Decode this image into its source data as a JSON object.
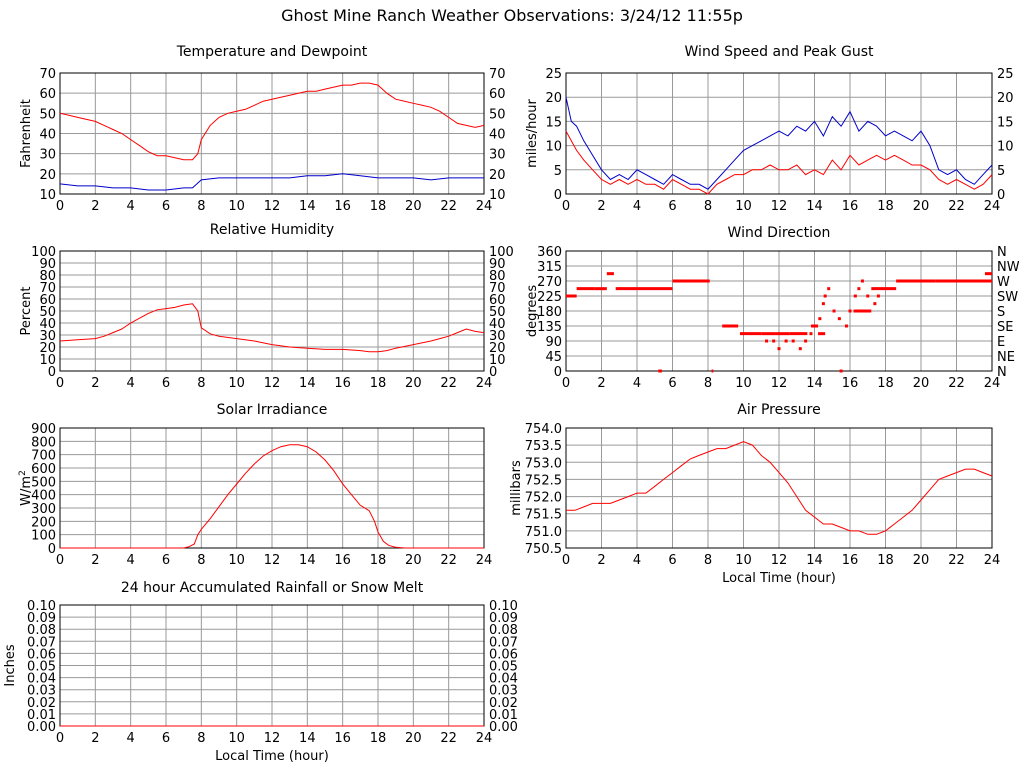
{
  "page": {
    "title": "Ghost Mine Ranch Weather Observations: 3/24/12 11:55p"
  },
  "chart_data": [
    {
      "id": "temperature",
      "type": "line",
      "title": "Temperature and Dewpoint",
      "xlabel": "",
      "ylabel": "Fahrenheit",
      "xlim": [
        0,
        24
      ],
      "ylim": [
        10,
        70
      ],
      "xticks": [
        0,
        2,
        4,
        6,
        8,
        10,
        12,
        14,
        16,
        18,
        20,
        22,
        24
      ],
      "yticks": [
        10,
        20,
        30,
        40,
        50,
        60,
        70
      ],
      "right_axis": true,
      "grid": true,
      "series": [
        {
          "color": "#ff0000",
          "x": [
            0,
            0.5,
            1,
            1.5,
            2,
            2.5,
            3,
            3.5,
            4,
            4.5,
            5,
            5.5,
            6,
            6.5,
            7,
            7.5,
            7.8,
            8,
            8.5,
            9,
            9.5,
            10,
            10.5,
            11,
            11.5,
            12,
            12.5,
            13,
            13.5,
            14,
            14.5,
            15,
            15.5,
            16,
            16.5,
            17,
            17.5,
            18,
            18.5,
            19,
            19.5,
            20,
            20.5,
            21,
            21.5,
            22,
            22.5,
            23,
            23.5,
            24
          ],
          "y": [
            50,
            49,
            48,
            47,
            46,
            44,
            42,
            40,
            37,
            34,
            31,
            29,
            29,
            28,
            27,
            27,
            30,
            37,
            44,
            48,
            50,
            51,
            52,
            54,
            56,
            57,
            58,
            59,
            60,
            61,
            61,
            62,
            63,
            64,
            64,
            65,
            65,
            64,
            60,
            57,
            56,
            55,
            54,
            53,
            51,
            48,
            45,
            44,
            43,
            44
          ]
        },
        {
          "color": "#0000cc",
          "x": [
            0,
            1,
            2,
            3,
            4,
            5,
            6,
            7,
            7.5,
            8,
            9,
            10,
            11,
            12,
            13,
            14,
            15,
            16,
            17,
            18,
            19,
            20,
            21,
            22,
            23,
            24
          ],
          "y": [
            15,
            14,
            14,
            13,
            13,
            12,
            12,
            13,
            13,
            17,
            18,
            18,
            18,
            18,
            18,
            19,
            19,
            20,
            19,
            18,
            18,
            18,
            17,
            18,
            18,
            18
          ]
        }
      ]
    },
    {
      "id": "wind-speed",
      "type": "line",
      "title": "Wind Speed and Peak Gust",
      "xlabel": "",
      "ylabel": "miles/hour",
      "xlim": [
        0,
        24
      ],
      "ylim": [
        0,
        25
      ],
      "xticks": [
        0,
        2,
        4,
        6,
        8,
        10,
        12,
        14,
        16,
        18,
        20,
        22,
        24
      ],
      "yticks": [
        0,
        5,
        10,
        15,
        20,
        25
      ],
      "right_axis": true,
      "grid": true,
      "series": [
        {
          "color": "#0000cc",
          "x": [
            0,
            0.3,
            0.6,
            1,
            1.5,
            2,
            2.5,
            3,
            3.5,
            4,
            4.5,
            5,
            5.5,
            6,
            6.5,
            7,
            7.5,
            8,
            8.5,
            9,
            9.5,
            10,
            10.5,
            11,
            11.5,
            12,
            12.5,
            13,
            13.5,
            14,
            14.5,
            15,
            15.5,
            16,
            16.5,
            17,
            17.5,
            18,
            18.5,
            19,
            19.5,
            20,
            20.5,
            21,
            21.5,
            22,
            22.5,
            23,
            23.5,
            24
          ],
          "y": [
            20,
            15,
            14,
            11,
            8,
            5,
            3,
            4,
            3,
            5,
            4,
            3,
            2,
            4,
            3,
            2,
            2,
            1,
            3,
            5,
            7,
            9,
            10,
            11,
            12,
            13,
            12,
            14,
            13,
            15,
            12,
            16,
            14,
            17,
            13,
            15,
            14,
            12,
            13,
            12,
            11,
            13,
            10,
            5,
            4,
            5,
            3,
            2,
            4,
            6
          ]
        },
        {
          "color": "#ff0000",
          "x": [
            0,
            0.3,
            0.6,
            1,
            1.5,
            2,
            2.5,
            3,
            3.5,
            4,
            4.5,
            5,
            5.5,
            6,
            6.5,
            7,
            7.5,
            8,
            8.5,
            9,
            9.5,
            10,
            10.5,
            11,
            11.5,
            12,
            12.5,
            13,
            13.5,
            14,
            14.5,
            15,
            15.5,
            16,
            16.5,
            17,
            17.5,
            18,
            18.5,
            19,
            19.5,
            20,
            20.5,
            21,
            21.5,
            22,
            22.5,
            23,
            23.5,
            24
          ],
          "y": [
            13,
            11,
            9,
            7,
            5,
            3,
            2,
            3,
            2,
            3,
            2,
            2,
            1,
            3,
            2,
            1,
            1,
            0,
            2,
            3,
            4,
            4,
            5,
            5,
            6,
            5,
            5,
            6,
            4,
            5,
            4,
            7,
            5,
            8,
            6,
            7,
            8,
            7,
            8,
            7,
            6,
            6,
            5,
            3,
            2,
            3,
            2,
            1,
            2,
            4
          ]
        }
      ]
    },
    {
      "id": "humidity",
      "type": "line",
      "title": "Relative Humidity",
      "xlabel": "",
      "ylabel": "Percent",
      "xlim": [
        0,
        24
      ],
      "ylim": [
        0,
        100
      ],
      "xticks": [
        0,
        2,
        4,
        6,
        8,
        10,
        12,
        14,
        16,
        18,
        20,
        22,
        24
      ],
      "yticks": [
        0,
        10,
        20,
        30,
        40,
        50,
        60,
        70,
        80,
        90,
        100
      ],
      "right_axis": true,
      "grid": true,
      "series": [
        {
          "color": "#ff0000",
          "x": [
            0,
            1,
            2,
            2.5,
            3,
            3.5,
            4,
            4.5,
            5,
            5.5,
            6,
            6.5,
            7,
            7.5,
            7.8,
            8,
            8.5,
            9,
            10,
            11,
            12,
            13,
            14,
            15,
            16,
            17,
            17.5,
            18,
            18.5,
            19,
            20,
            21,
            21.5,
            22,
            22.5,
            23,
            23.5,
            24
          ],
          "y": [
            25,
            26,
            27,
            29,
            32,
            35,
            40,
            44,
            48,
            51,
            52,
            53,
            55,
            56,
            50,
            36,
            31,
            29,
            27,
            25,
            22,
            20,
            19,
            18,
            18,
            17,
            16,
            16,
            17,
            19,
            22,
            25,
            27,
            29,
            32,
            35,
            33,
            32
          ]
        }
      ]
    },
    {
      "id": "wind-direction",
      "type": "scatter",
      "title": "Wind Direction",
      "xlabel": "",
      "ylabel": "degrees",
      "xlim": [
        0,
        24
      ],
      "ylim": [
        0,
        360
      ],
      "xticks": [
        0,
        2,
        4,
        6,
        8,
        10,
        12,
        14,
        16,
        18,
        20,
        22,
        24
      ],
      "yticks": [
        0,
        45,
        90,
        135,
        180,
        225,
        270,
        315,
        360
      ],
      "right_labels": [
        "N",
        "NE",
        "E",
        "SE",
        "S",
        "SW",
        "W",
        "NW",
        "N"
      ],
      "grid": true,
      "series": [
        {
          "color": "#ff0000",
          "segments": [
            [
              0,
              0.6,
              225
            ],
            [
              0.6,
              1.6,
              247
            ],
            [
              1.6,
              2.3,
              247
            ],
            [
              2.3,
              2.7,
              292
            ],
            [
              2.8,
              6,
              247
            ],
            [
              6,
              8.1,
              270
            ],
            [
              8.2,
              8.3,
              0
            ],
            [
              5.2,
              5.4,
              0
            ],
            [
              8.8,
              9.7,
              135
            ],
            [
              9.8,
              11,
              112
            ],
            [
              11,
              11.8,
              112
            ],
            [
              11.8,
              12.6,
              112
            ],
            [
              12.6,
              13.6,
              112
            ],
            [
              13.8,
              14.2,
              135
            ],
            [
              14.2,
              14.6,
              112
            ],
            [
              16.2,
              17.2,
              180
            ],
            [
              17.2,
              18.6,
              247
            ],
            [
              18.6,
              20.8,
              270
            ],
            [
              20.8,
              24,
              270
            ],
            [
              23.6,
              24,
              292
            ]
          ],
          "points": [
            [
              11.3,
              90
            ],
            [
              11.7,
              90
            ],
            [
              12,
              67
            ],
            [
              12.4,
              90
            ],
            [
              12.8,
              90
            ],
            [
              13.2,
              67
            ],
            [
              13.5,
              90
            ],
            [
              13.8,
              112
            ],
            [
              14.3,
              157
            ],
            [
              14.5,
              202
            ],
            [
              14.6,
              225
            ],
            [
              14.8,
              247
            ],
            [
              15.1,
              180
            ],
            [
              15.4,
              157
            ],
            [
              15.5,
              0
            ],
            [
              15.8,
              135
            ],
            [
              16,
              180
            ],
            [
              16.3,
              225
            ],
            [
              16.5,
              247
            ],
            [
              16.7,
              270
            ],
            [
              17.0,
              225
            ],
            [
              17.4,
              202
            ],
            [
              17.6,
              225
            ]
          ]
        }
      ]
    },
    {
      "id": "solar",
      "type": "line",
      "title": "Solar Irradiance",
      "xlabel": "",
      "ylabel": "W/m²",
      "xlim": [
        0,
        24
      ],
      "ylim": [
        0,
        900
      ],
      "xticks": [
        0,
        2,
        4,
        6,
        8,
        10,
        12,
        14,
        16,
        18,
        20,
        22,
        24
      ],
      "yticks": [
        0,
        100,
        200,
        300,
        400,
        500,
        600,
        700,
        800,
        900
      ],
      "right_axis": false,
      "grid": true,
      "series": [
        {
          "color": "#ff0000",
          "x": [
            0,
            6,
            7,
            7.3,
            7.6,
            7.8,
            8,
            8.5,
            9,
            9.5,
            10,
            10.5,
            11,
            11.5,
            12,
            12.5,
            13,
            13.5,
            14,
            14.5,
            15,
            15.5,
            16,
            16.5,
            17,
            17.5,
            17.8,
            18,
            18.3,
            18.6,
            19,
            19.5,
            20,
            24
          ],
          "y": [
            0,
            0,
            0,
            10,
            30,
            100,
            140,
            220,
            310,
            400,
            480,
            560,
            630,
            690,
            730,
            760,
            775,
            775,
            760,
            720,
            660,
            580,
            480,
            400,
            320,
            280,
            200,
            120,
            50,
            20,
            5,
            0,
            0,
            0
          ]
        }
      ]
    },
    {
      "id": "pressure",
      "type": "line",
      "title": "Air Pressure",
      "xlabel": "Local Time (hour)",
      "ylabel": "millibars",
      "xlim": [
        0,
        24
      ],
      "ylim": [
        750.5,
        754.0
      ],
      "xticks": [
        0,
        2,
        4,
        6,
        8,
        10,
        12,
        14,
        16,
        18,
        20,
        22,
        24
      ],
      "ytick_labels": [
        "750.5",
        "751.0",
        "751.5",
        "752.0",
        "752.5",
        "753.0",
        "753.5",
        "754.0"
      ],
      "yticks": [
        750.5,
        751.0,
        751.5,
        752.0,
        752.5,
        753.0,
        753.5,
        754.0
      ],
      "right_axis": false,
      "grid": true,
      "series": [
        {
          "color": "#ff0000",
          "x": [
            0,
            0.5,
            1,
            1.5,
            2,
            2.5,
            3,
            3.5,
            4,
            4.5,
            5,
            5.5,
            6,
            6.5,
            7,
            7.5,
            8,
            8.5,
            9,
            9.5,
            10,
            10.5,
            11,
            11.5,
            12,
            12.5,
            13,
            13.5,
            14,
            14.5,
            15,
            15.5,
            16,
            16.5,
            17,
            17.5,
            18,
            18.5,
            19,
            19.5,
            20,
            20.5,
            21,
            21.5,
            22,
            22.5,
            23,
            23.5,
            24
          ],
          "y": [
            751.6,
            751.6,
            751.7,
            751.8,
            751.8,
            751.8,
            751.9,
            752.0,
            752.1,
            752.1,
            752.3,
            752.5,
            752.7,
            752.9,
            753.1,
            753.2,
            753.3,
            753.4,
            753.4,
            753.5,
            753.6,
            753.5,
            753.2,
            753.0,
            752.7,
            752.4,
            752.0,
            751.6,
            751.4,
            751.2,
            751.2,
            751.1,
            751.0,
            751.0,
            750.9,
            750.9,
            751.0,
            751.2,
            751.4,
            751.6,
            751.9,
            752.2,
            752.5,
            752.6,
            752.7,
            752.8,
            752.8,
            752.7,
            752.6
          ]
        }
      ]
    },
    {
      "id": "rain",
      "type": "line",
      "title": "24 hour Accumulated Rainfall or Snow Melt",
      "xlabel": "Local Time (hour)",
      "ylabel": "Inches",
      "xlim": [
        0,
        24
      ],
      "ylim": [
        0,
        0.1
      ],
      "xticks": [
        0,
        2,
        4,
        6,
        8,
        10,
        12,
        14,
        16,
        18,
        20,
        22,
        24
      ],
      "ytick_labels": [
        "0.00",
        "0.01",
        "0.02",
        "0.03",
        "0.04",
        "0.05",
        "0.06",
        "0.07",
        "0.08",
        "0.09",
        "0.10"
      ],
      "yticks": [
        0,
        0.01,
        0.02,
        0.03,
        0.04,
        0.05,
        0.06,
        0.07,
        0.08,
        0.09,
        0.1
      ],
      "right_axis": true,
      "grid": true,
      "series": [
        {
          "color": "#ff0000",
          "x": [
            0,
            24
          ],
          "y": [
            0,
            0
          ]
        }
      ]
    }
  ]
}
